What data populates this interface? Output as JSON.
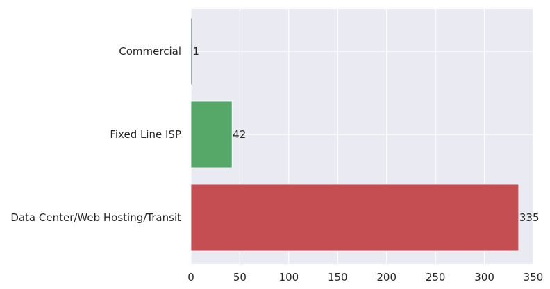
{
  "chart_data": {
    "type": "bar",
    "orientation": "horizontal",
    "categories": [
      "Commercial",
      "Fixed Line ISP",
      "Data Center/Web Hosting/Transit"
    ],
    "values": [
      1,
      42,
      335
    ],
    "colors": [
      "#4C72B0",
      "#55A868",
      "#C44E52"
    ],
    "data_labels": [
      "1",
      "42",
      "335"
    ],
    "xticks": [
      0,
      50,
      100,
      150,
      200,
      250,
      300,
      350
    ],
    "xtick_labels": [
      "0",
      "50",
      "100",
      "150",
      "200",
      "250",
      "300",
      "350"
    ],
    "xlim": [
      0,
      350
    ],
    "grid": true,
    "background": "#EAEAF2",
    "grid_color": "#FFFFFF"
  }
}
